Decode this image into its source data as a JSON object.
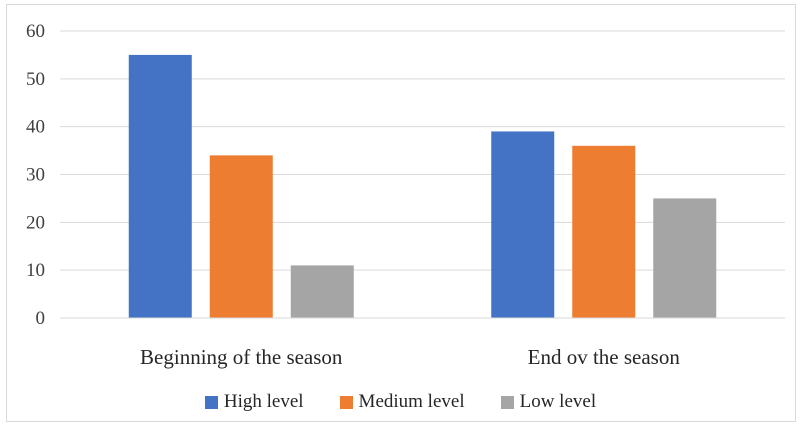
{
  "chart_data": {
    "type": "bar",
    "categories": [
      "Beginning of the season",
      "End ov the season"
    ],
    "series": [
      {
        "name": "High level",
        "color": "#4472C4",
        "values": [
          55,
          39
        ]
      },
      {
        "name": "Medium level",
        "color": "#ED7D31",
        "values": [
          34,
          36
        ]
      },
      {
        "name": "Low level",
        "color": "#A5A5A5",
        "values": [
          11,
          25
        ]
      }
    ],
    "yticks": [
      0,
      10,
      20,
      30,
      40,
      50,
      60
    ],
    "ylim": [
      0,
      60
    ],
    "grid": true,
    "legend_position": "bottom"
  }
}
